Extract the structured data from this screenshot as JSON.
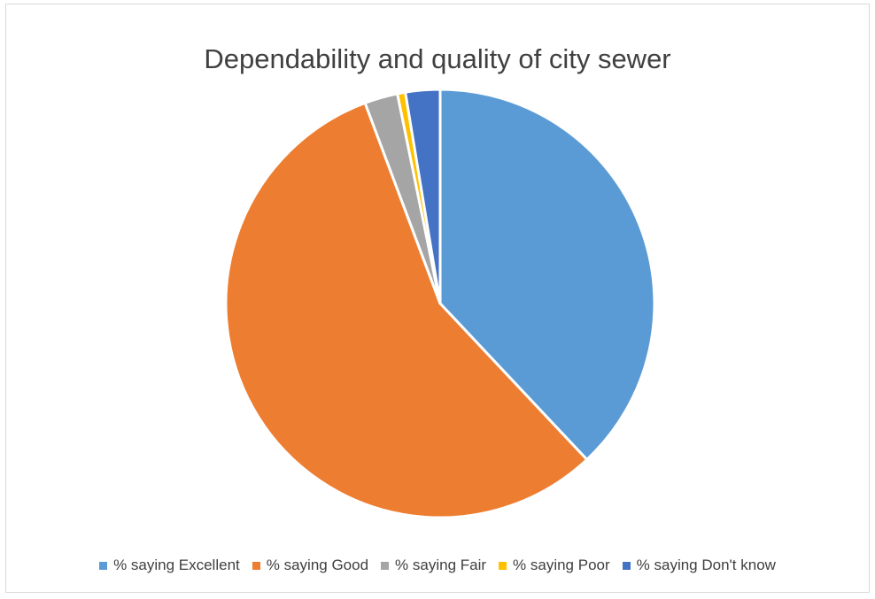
{
  "chart_data": {
    "type": "pie",
    "title": "Dependability and quality of city sewer",
    "categories": [
      "% saying Excellent",
      "% saying Good",
      "% saying Fair",
      "% saying Poor",
      "% saying Don't know"
    ],
    "values": [
      38.0,
      56.3,
      2.5,
      0.6,
      2.6
    ],
    "colors": [
      "#5B9BD5",
      "#ED7D31",
      "#A5A5A5",
      "#FFC000",
      "#4472C4"
    ],
    "legend_position": "bottom",
    "start": "12 o'clock, clockwise"
  }
}
